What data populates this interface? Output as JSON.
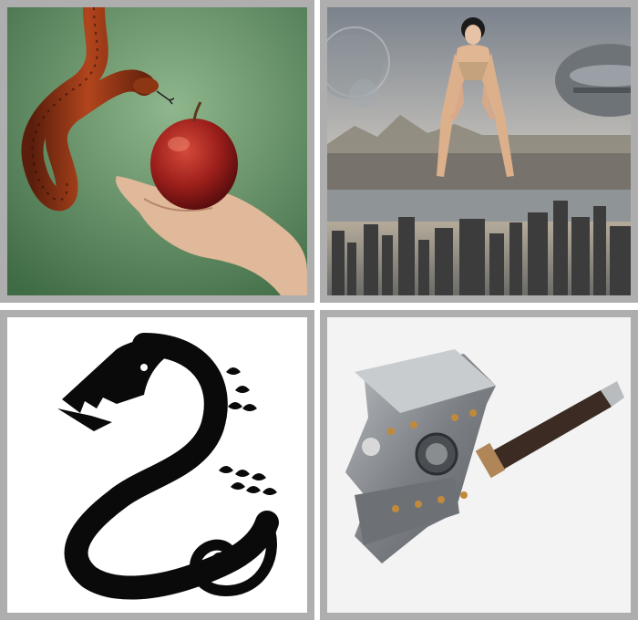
{
  "tiles": [
    {
      "name": "snake-apple-hand-picture",
      "icon": "snake-offering-apple-image"
    },
    {
      "name": "giant-woman-city-picture",
      "icon": "giant-over-city-image"
    },
    {
      "name": "serpent-symbol-picture",
      "icon": "black-serpent-symbol-image"
    },
    {
      "name": "war-hammer-picture",
      "icon": "warhammer-image"
    }
  ],
  "colors": {
    "frame": "#aeaeae",
    "background": "#ffffff",
    "green_backdrop": "#5f8a60",
    "sky": "#9aa0a6",
    "serpent": "#0a0a0a",
    "hammer_metal": "#8a8d90"
  }
}
